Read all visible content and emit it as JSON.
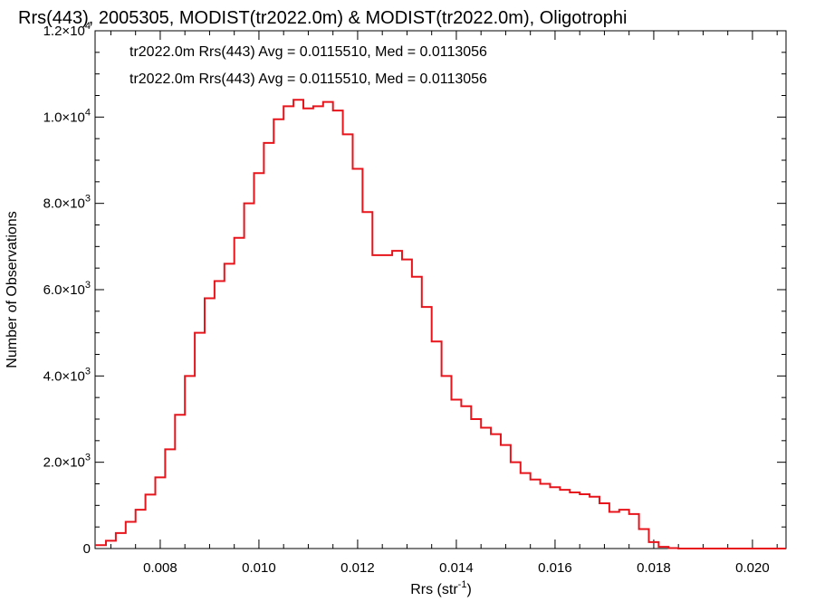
{
  "chart_data": {
    "type": "line",
    "step": true,
    "title": "Rrs(443), 2005305, MODIST(tr2022.0m) & MODIST(tr2022.0m), Oligotrophi",
    "xlabel": "Rrs (str",
    "xlabel_sup": "-1",
    "xlabel_end": ")",
    "ylabel": "Number of Observations",
    "xlim": [
      0.00668,
      0.02068
    ],
    "ylim": [
      0,
      12000
    ],
    "x_ticks": [
      {
        "value": 0.008,
        "label": "0.008"
      },
      {
        "value": 0.01,
        "label": "0.010"
      },
      {
        "value": 0.012,
        "label": "0.012"
      },
      {
        "value": 0.014,
        "label": "0.014"
      },
      {
        "value": 0.016,
        "label": "0.016"
      },
      {
        "value": 0.018,
        "label": "0.018"
      },
      {
        "value": 0.02,
        "label": "0.020"
      }
    ],
    "y_ticks": [
      {
        "value": 0,
        "mant": "0",
        "exp": ""
      },
      {
        "value": 2000,
        "mant": "2.0×10",
        "exp": "3"
      },
      {
        "value": 4000,
        "mant": "4.0×10",
        "exp": "3"
      },
      {
        "value": 6000,
        "mant": "6.0×10",
        "exp": "3"
      },
      {
        "value": 8000,
        "mant": "8.0×10",
        "exp": "3"
      },
      {
        "value": 10000,
        "mant": "1.0×10",
        "exp": "4"
      },
      {
        "value": 12000,
        "mant": "1.2×10",
        "exp": "4"
      }
    ],
    "legend": [
      {
        "text": "tr2022.0m Rrs(443) Avg = 0.0115510, Med = 0.0113056",
        "color": "#000000"
      },
      {
        "text": "tr2022.0m Rrs(443) Avg = 0.0115510, Med = 0.0113056",
        "color": "#e8141b"
      }
    ],
    "series": [
      {
        "color": "#e8141b",
        "points": [
          [
            0.00668,
            80
          ],
          [
            0.0069,
            180
          ],
          [
            0.0071,
            360
          ],
          [
            0.0073,
            620
          ],
          [
            0.0075,
            900
          ],
          [
            0.0077,
            1250
          ],
          [
            0.0079,
            1650
          ],
          [
            0.0081,
            2300
          ],
          [
            0.0083,
            3100
          ],
          [
            0.0085,
            4000
          ],
          [
            0.0087,
            5000
          ],
          [
            0.0089,
            5800
          ],
          [
            0.0091,
            6200
          ],
          [
            0.0093,
            6600
          ],
          [
            0.0095,
            7200
          ],
          [
            0.0097,
            8000
          ],
          [
            0.0099,
            8700
          ],
          [
            0.0101,
            9400
          ],
          [
            0.0103,
            9950
          ],
          [
            0.0105,
            10250
          ],
          [
            0.0107,
            10400
          ],
          [
            0.0109,
            10200
          ],
          [
            0.0111,
            10250
          ],
          [
            0.0113,
            10350
          ],
          [
            0.0115,
            10150
          ],
          [
            0.0117,
            9600
          ],
          [
            0.0119,
            8800
          ],
          [
            0.0121,
            7800
          ],
          [
            0.0123,
            6800
          ],
          [
            0.0125,
            6800
          ],
          [
            0.0127,
            6900
          ],
          [
            0.0129,
            6700
          ],
          [
            0.0131,
            6300
          ],
          [
            0.0133,
            5600
          ],
          [
            0.0135,
            4800
          ],
          [
            0.0137,
            4000
          ],
          [
            0.0139,
            3450
          ],
          [
            0.0141,
            3300
          ],
          [
            0.0143,
            3000
          ],
          [
            0.0145,
            2800
          ],
          [
            0.0147,
            2650
          ],
          [
            0.0149,
            2400
          ],
          [
            0.0151,
            2000
          ],
          [
            0.0153,
            1750
          ],
          [
            0.0155,
            1600
          ],
          [
            0.0157,
            1500
          ],
          [
            0.0159,
            1420
          ],
          [
            0.0161,
            1360
          ],
          [
            0.0163,
            1300
          ],
          [
            0.0165,
            1260
          ],
          [
            0.0167,
            1200
          ],
          [
            0.0169,
            1050
          ],
          [
            0.0171,
            850
          ],
          [
            0.0173,
            900
          ],
          [
            0.0175,
            800
          ],
          [
            0.0177,
            450
          ],
          [
            0.0179,
            150
          ],
          [
            0.0181,
            40
          ],
          [
            0.0183,
            10
          ],
          [
            0.0185,
            0
          ],
          [
            0.0195,
            0
          ],
          [
            0.0205,
            0
          ],
          [
            0.02068,
            0
          ]
        ]
      }
    ]
  }
}
